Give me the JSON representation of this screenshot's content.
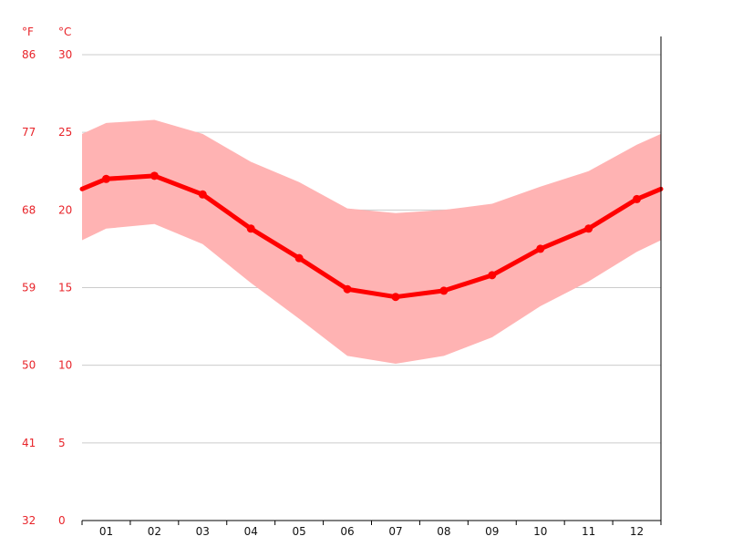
{
  "chart_data": {
    "type": "line",
    "unit_labels": {
      "fahrenheit": "°F",
      "celsius": "°C"
    },
    "categories": [
      "01",
      "02",
      "03",
      "04",
      "05",
      "06",
      "07",
      "08",
      "09",
      "10",
      "11",
      "12"
    ],
    "celsius_ticks": [
      "0",
      "5",
      "10",
      "15",
      "20",
      "25",
      "30"
    ],
    "fahrenheit_ticks": [
      "32",
      "41",
      "50",
      "59",
      "68",
      "77",
      "86"
    ],
    "ylim": [
      0,
      30
    ],
    "grid": true,
    "series": [
      {
        "role": "mean",
        "color": "#ff0000",
        "values": [
          22.0,
          22.2,
          21.0,
          18.8,
          16.9,
          14.9,
          14.4,
          14.8,
          15.8,
          17.5,
          18.8,
          20.7
        ]
      },
      {
        "role": "max",
        "color": "#ffb3b3",
        "values": [
          25.6,
          25.8,
          24.9,
          23.1,
          21.8,
          20.1,
          19.8,
          20.0,
          20.4,
          21.5,
          22.5,
          24.2
        ]
      },
      {
        "role": "min",
        "color": "#ffb3b3",
        "values": [
          18.8,
          19.1,
          17.8,
          15.3,
          13.0,
          10.6,
          10.1,
          10.6,
          11.8,
          13.8,
          15.4,
          17.3
        ]
      }
    ]
  }
}
